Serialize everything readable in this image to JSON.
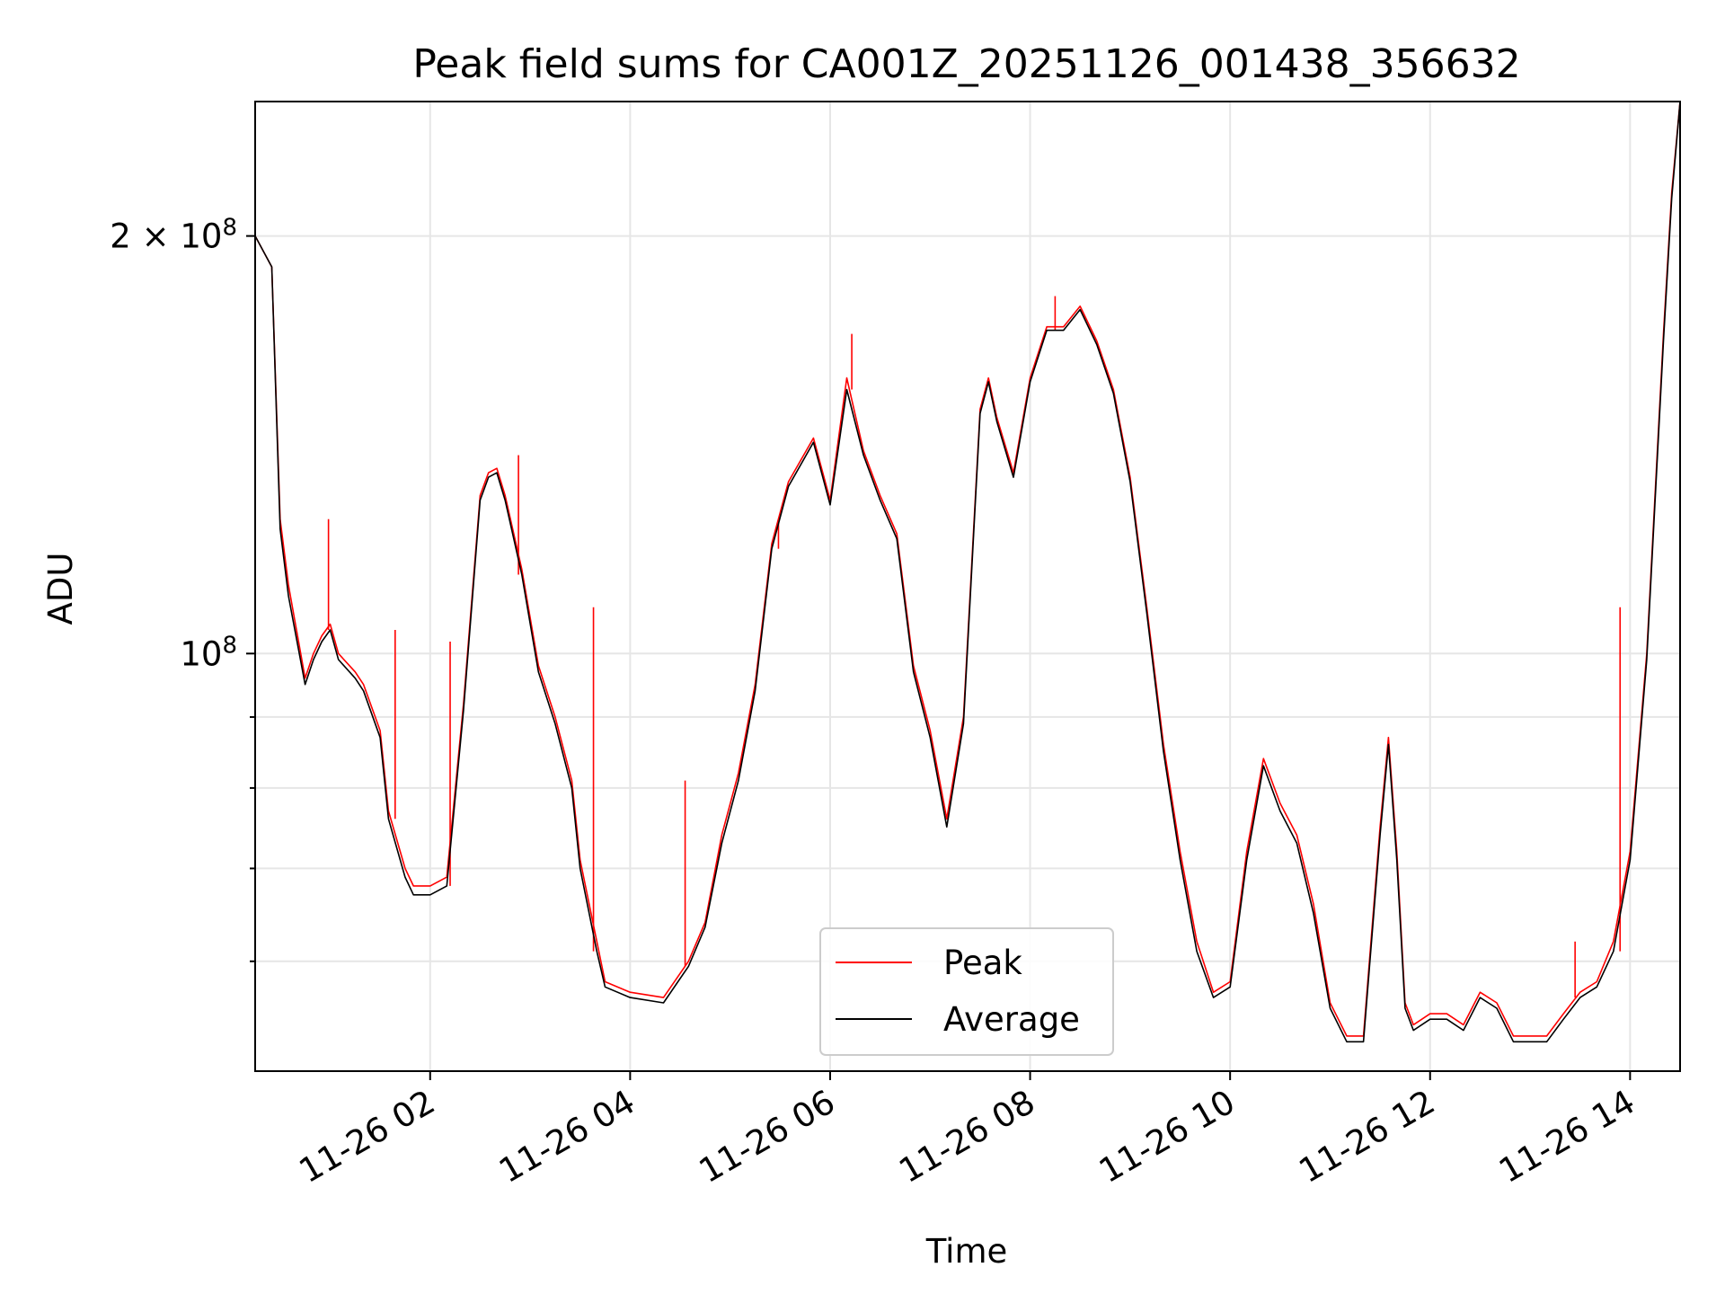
{
  "chart_data": {
    "type": "line",
    "title": "Peak field sums for CA001Z_20251126_001438_356632",
    "xlabel": "Time",
    "ylabel": "ADU",
    "yscale": "log",
    "xlim": [
      "2025-11-26 00:15",
      "2025-11-26 14:30"
    ],
    "ylim": [
      50000000,
      250000000
    ],
    "x_ticks": [
      {
        "t": "2025-11-26 02:00",
        "label": "11-26 02"
      },
      {
        "t": "2025-11-26 04:00",
        "label": "11-26 04"
      },
      {
        "t": "2025-11-26 06:00",
        "label": "11-26 06"
      },
      {
        "t": "2025-11-26 08:00",
        "label": "11-26 08"
      },
      {
        "t": "2025-11-26 10:00",
        "label": "11-26 10"
      },
      {
        "t": "2025-11-26 12:00",
        "label": "11-26 12"
      },
      {
        "t": "2025-11-26 14:00",
        "label": "11-26 14"
      }
    ],
    "y_ticks": [
      {
        "v": 200000000,
        "base": "2 × 10",
        "exp": "8"
      },
      {
        "v": 100000000,
        "base": "10",
        "exp": "8"
      }
    ],
    "y_minor_ticks": [
      60000000,
      70000000,
      80000000,
      90000000
    ],
    "grid": true,
    "legend_position": "lower-center",
    "x": [
      "2025-11-26 00:15",
      "2025-11-26 00:25",
      "2025-11-26 00:30",
      "2025-11-26 00:35",
      "2025-11-26 00:45",
      "2025-11-26 00:50",
      "2025-11-26 00:55",
      "2025-11-26 01:00",
      "2025-11-26 01:05",
      "2025-11-26 01:15",
      "2025-11-26 01:20",
      "2025-11-26 01:30",
      "2025-11-26 01:35",
      "2025-11-26 01:45",
      "2025-11-26 01:50",
      "2025-11-26 02:00",
      "2025-11-26 02:10",
      "2025-11-26 02:20",
      "2025-11-26 02:30",
      "2025-11-26 02:35",
      "2025-11-26 02:40",
      "2025-11-26 02:45",
      "2025-11-26 02:55",
      "2025-11-26 03:05",
      "2025-11-26 03:15",
      "2025-11-26 03:25",
      "2025-11-26 03:30",
      "2025-11-26 03:40",
      "2025-11-26 03:45",
      "2025-11-26 04:00",
      "2025-11-26 04:20",
      "2025-11-26 04:35",
      "2025-11-26 04:45",
      "2025-11-26 04:55",
      "2025-11-26 05:05",
      "2025-11-26 05:15",
      "2025-11-26 05:25",
      "2025-11-26 05:35",
      "2025-11-26 05:50",
      "2025-11-26 06:00",
      "2025-11-26 06:10",
      "2025-11-26 06:20",
      "2025-11-26 06:30",
      "2025-11-26 06:40",
      "2025-11-26 06:50",
      "2025-11-26 07:00",
      "2025-11-26 07:10",
      "2025-11-26 07:20",
      "2025-11-26 07:30",
      "2025-11-26 07:35",
      "2025-11-26 07:40",
      "2025-11-26 07:50",
      "2025-11-26 08:00",
      "2025-11-26 08:10",
      "2025-11-26 08:20",
      "2025-11-26 08:30",
      "2025-11-26 08:40",
      "2025-11-26 08:50",
      "2025-11-26 09:00",
      "2025-11-26 09:10",
      "2025-11-26 09:20",
      "2025-11-26 09:30",
      "2025-11-26 09:40",
      "2025-11-26 09:50",
      "2025-11-26 10:00",
      "2025-11-26 10:10",
      "2025-11-26 10:20",
      "2025-11-26 10:30",
      "2025-11-26 10:40",
      "2025-11-26 10:50",
      "2025-11-26 11:00",
      "2025-11-26 11:10",
      "2025-11-26 11:20",
      "2025-11-26 11:30",
      "2025-11-26 11:35",
      "2025-11-26 11:40",
      "2025-11-26 11:45",
      "2025-11-26 11:50",
      "2025-11-26 12:00",
      "2025-11-26 12:10",
      "2025-11-26 12:20",
      "2025-11-26 12:30",
      "2025-11-26 12:40",
      "2025-11-26 12:50",
      "2025-11-26 13:00",
      "2025-11-26 13:10",
      "2025-11-26 13:20",
      "2025-11-26 13:30",
      "2025-11-26 13:40",
      "2025-11-26 13:50",
      "2025-11-26 14:00",
      "2025-11-26 14:10",
      "2025-11-26 14:20",
      "2025-11-26 14:25",
      "2025-11-26 14:30"
    ],
    "series": [
      {
        "name": "Peak",
        "color": "#ff0000",
        "values": [
          200000000,
          190000000,
          125000000,
          112000000,
          96000000,
          100000000,
          103000000,
          105000000,
          100000000,
          97000000,
          95000000,
          88000000,
          77000000,
          70000000,
          68000000,
          68000000,
          69000000,
          92000000,
          130000000,
          135000000,
          136000000,
          130000000,
          115000000,
          98000000,
          90000000,
          81000000,
          71000000,
          62000000,
          58000000,
          57000000,
          56500000,
          60000000,
          64000000,
          74000000,
          82000000,
          95000000,
          120000000,
          133000000,
          143000000,
          129000000,
          158000000,
          140000000,
          130000000,
          122000000,
          98000000,
          88000000,
          76000000,
          90000000,
          150000000,
          158000000,
          148000000,
          135000000,
          158000000,
          172000000,
          172000000,
          178000000,
          168000000,
          155000000,
          134000000,
          108000000,
          86000000,
          72000000,
          62000000,
          57000000,
          58000000,
          72000000,
          84000000,
          78000000,
          74000000,
          66000000,
          56000000,
          53000000,
          53000000,
          75000000,
          87000000,
          72000000,
          56000000,
          54000000,
          55000000,
          55000000,
          54000000,
          57000000,
          56000000,
          53000000,
          53000000,
          53000000,
          55000000,
          57000000,
          58000000,
          62000000,
          72000000,
          100000000,
          170000000,
          215000000,
          250000000
        ]
      },
      {
        "name": "Average",
        "color": "#000000",
        "values": [
          200000000,
          190000000,
          123000000,
          110000000,
          95000000,
          99000000,
          102000000,
          104000000,
          99000000,
          96000000,
          94000000,
          87000000,
          76000000,
          69000000,
          67000000,
          67000000,
          68000000,
          91000000,
          129000000,
          134000000,
          135000000,
          129000000,
          114000000,
          97000000,
          89000000,
          80000000,
          70000000,
          61000000,
          57500000,
          56500000,
          56000000,
          59500000,
          63500000,
          73000000,
          81000000,
          94000000,
          119000000,
          132000000,
          142000000,
          128000000,
          155000000,
          139000000,
          129000000,
          121000000,
          97000000,
          87000000,
          75000000,
          89000000,
          149000000,
          157000000,
          147000000,
          134000000,
          157000000,
          171000000,
          171000000,
          177000000,
          167000000,
          154000000,
          133000000,
          107000000,
          85000000,
          71000000,
          61000000,
          56500000,
          57500000,
          71000000,
          83000000,
          77000000,
          73000000,
          65000000,
          55500000,
          52500000,
          52500000,
          74000000,
          86000000,
          71000000,
          55500000,
          53500000,
          54500000,
          54500000,
          53500000,
          56500000,
          55500000,
          52500000,
          52500000,
          52500000,
          54500000,
          56500000,
          57500000,
          61000000,
          71000000,
          99000000,
          168000000,
          213000000,
          250000000
        ]
      }
    ],
    "peak_spikes": [
      {
        "t": "2025-11-26 00:59",
        "v": 125000000
      },
      {
        "t": "2025-11-26 01:39",
        "v": 104000000
      },
      {
        "t": "2025-11-26 02:12",
        "v": 102000000
      },
      {
        "t": "2025-11-26 02:53",
        "v": 139000000
      },
      {
        "t": "2025-11-26 03:38",
        "v": 108000000
      },
      {
        "t": "2025-11-26 04:33",
        "v": 81000000
      },
      {
        "t": "2025-11-26 05:29",
        "v": 125000000
      },
      {
        "t": "2025-11-26 06:13",
        "v": 170000000
      },
      {
        "t": "2025-11-26 08:15",
        "v": 181000000
      },
      {
        "t": "2025-11-26 13:27",
        "v": 62000000
      },
      {
        "t": "2025-11-26 13:54",
        "v": 108000000
      }
    ]
  }
}
